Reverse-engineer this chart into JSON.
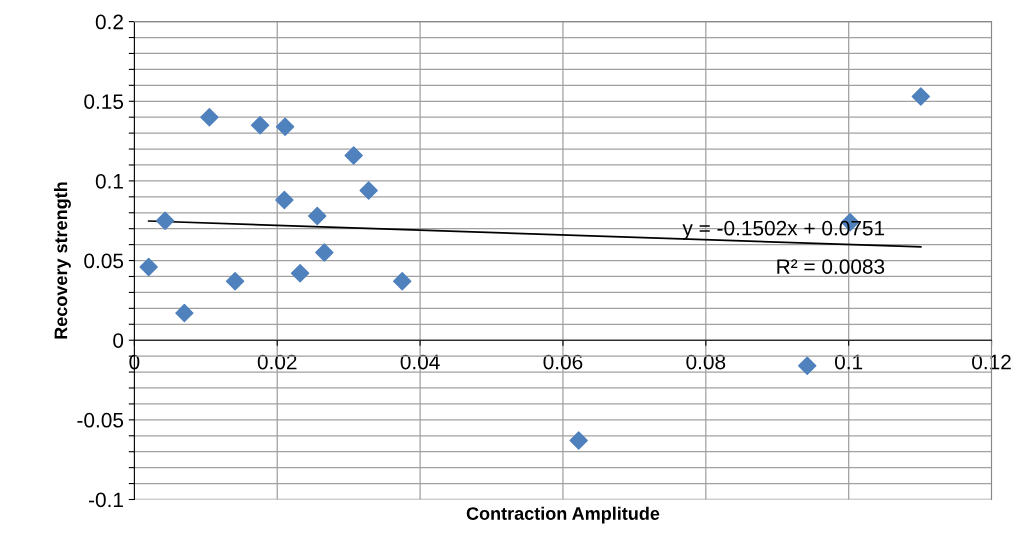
{
  "chart_data": {
    "type": "scatter",
    "xlabel": "Contraction Amplitude",
    "ylabel": "Recovery strength",
    "series": [
      {
        "color": "#4f81bd",
        "marker": "diamond",
        "x": [
          0.002,
          0.0043,
          0.007,
          0.0105,
          0.0141,
          0.0176,
          0.0211,
          0.021,
          0.0232,
          0.0256,
          0.0266,
          0.0307,
          0.0328,
          0.0375,
          0.0622,
          0.0942,
          0.1002,
          0.1101
        ],
        "values": [
          0.046,
          0.075,
          0.017,
          0.14,
          0.037,
          0.135,
          0.134,
          0.088,
          0.042,
          0.078,
          0.055,
          0.116,
          0.094,
          0.037,
          -0.063,
          -0.016,
          0.074,
          0.153
        ]
      },
      {
        "type": "line",
        "color": "#000000",
        "marker": "none",
        "x": [
          0.002,
          0.1101
        ],
        "values": [
          0.0748,
          0.0586
        ]
      }
    ],
    "xlim": [
      0,
      0.12
    ],
    "xticks": [
      0,
      0.02,
      0.04,
      0.06,
      0.08,
      0.1,
      0.12
    ],
    "ylim": [
      -0.1,
      0.2
    ],
    "yticks": [
      -0.1,
      {
        "value": -0.09,
        "label": null
      },
      {
        "value": -0.08,
        "label": null
      },
      {
        "value": -0.07,
        "label": null
      },
      {
        "value": -0.06,
        "label": null
      },
      -0.05,
      {
        "value": -0.04,
        "label": null
      },
      {
        "value": -0.03,
        "label": null
      },
      {
        "value": -0.02,
        "label": null
      },
      {
        "value": -0.01,
        "label": null
      },
      0,
      {
        "value": 0.01,
        "label": null
      },
      {
        "value": 0.02,
        "label": null
      },
      {
        "value": 0.03,
        "label": null
      },
      {
        "value": 0.04,
        "label": null
      },
      0.05,
      {
        "value": 0.06,
        "label": null
      },
      {
        "value": 0.07,
        "label": null
      },
      {
        "value": 0.08,
        "label": null
      },
      {
        "value": 0.09,
        "label": null
      },
      0.1,
      {
        "value": 0.11,
        "label": null
      },
      {
        "value": 0.12,
        "label": null
      },
      {
        "value": 0.13,
        "label": null
      },
      {
        "value": 0.14,
        "label": null
      },
      0.15,
      {
        "value": 0.16,
        "label": null
      },
      {
        "value": 0.17,
        "label": null
      },
      {
        "value": 0.18,
        "label": null
      },
      {
        "value": 0.19,
        "label": null
      },
      0.2
    ],
    "grid": true,
    "legend": false,
    "annotations": [
      "y = -0.1502x + 0.0751",
      "R² = 0.0083"
    ]
  }
}
